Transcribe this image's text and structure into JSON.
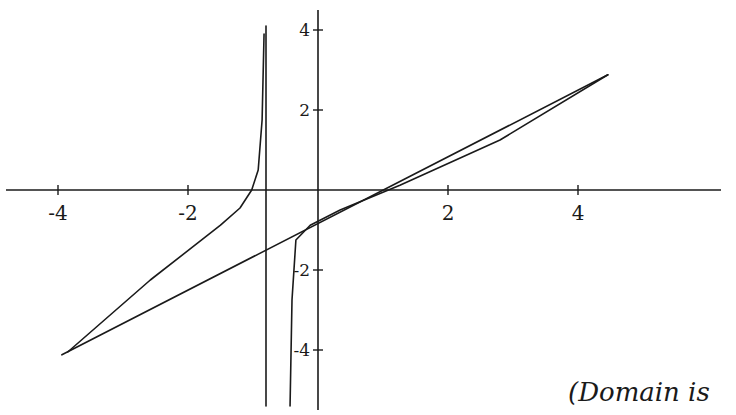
{
  "chart_data": {
    "type": "line",
    "xlim": [
      -4.8,
      6.2
    ],
    "ylim": [
      -5.5,
      4.5
    ],
    "xticks": [
      -4,
      -2,
      2,
      4
    ],
    "yticks": [
      4,
      2,
      -2,
      -4
    ],
    "grid": false,
    "series": [
      {
        "color": "#1a1a1a",
        "x": [
          -3.94,
          4.46
        ],
        "values": [
          -4.12,
          2.88
        ]
      },
      {
        "color": "#1a1a1a",
        "x": [
          -3.85,
          -2.58,
          -1.5,
          -1.2,
          -1.02,
          -0.92,
          -0.86,
          -0.83
        ],
        "values": [
          -4.05,
          -2.25,
          -0.88,
          -0.45,
          0,
          0.5,
          1.75,
          3.9
        ]
      },
      {
        "color": "#1a1a1a",
        "x": [
          -0.43,
          -0.4,
          -0.34,
          -0.12,
          0.34,
          1.26,
          2.8,
          4.46
        ],
        "values": [
          -5.4,
          -2.75,
          -1.25,
          -0.88,
          -0.5,
          0.12,
          1.25,
          2.88
        ]
      },
      {
        "color": "#1a1a1a",
        "x": [
          -0.8,
          -0.8
        ],
        "values": [
          4.1,
          -5.4
        ]
      }
    ],
    "annotations": [
      "(Domain is"
    ]
  }
}
